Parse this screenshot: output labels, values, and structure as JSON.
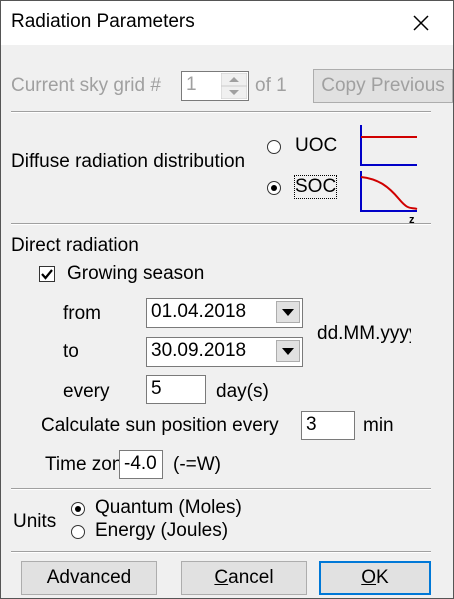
{
  "title": "Radiation Parameters",
  "sky_grid": {
    "label": "Current sky grid #",
    "value": "1",
    "of_label": "of 1",
    "copy_button": "Copy Previous"
  },
  "diffuse": {
    "label": "Diffuse radiation distribution",
    "options": [
      "UOC",
      "SOC"
    ],
    "selected": 1,
    "axis_label": "z"
  },
  "direct": {
    "label": "Direct radiation",
    "growing_season": {
      "label": "Growing season",
      "checked": true
    },
    "from_label": "from",
    "from_value": "01.04.2018",
    "to_label": "to",
    "to_value": "30.09.2018",
    "date_format": "dd.MM.yyyy",
    "every_label": "every",
    "every_value": "5",
    "every_unit": "day(s)",
    "calc_label": "Calculate sun position every",
    "calc_value": "3",
    "calc_unit": "min",
    "tz_label": "Time zone",
    "tz_value": "-4.0",
    "tz_unit": "(-=W)"
  },
  "units": {
    "label": "Units",
    "options": [
      "Quantum (Moles)",
      "Energy (Joules)"
    ],
    "selected": 0
  },
  "buttons": [
    "Advanced",
    "Cancel",
    "OK"
  ]
}
